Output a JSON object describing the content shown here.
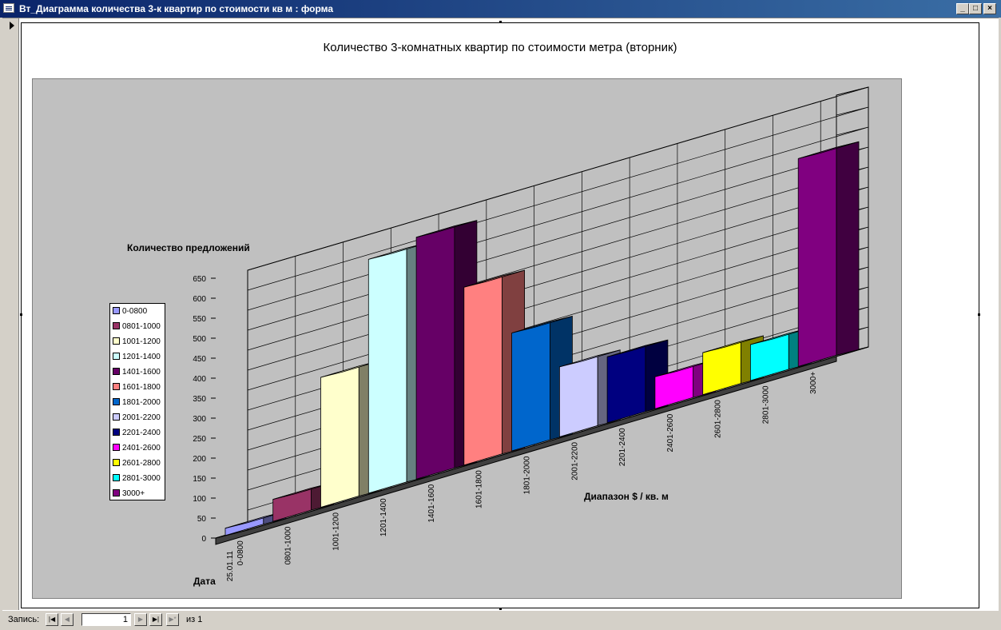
{
  "window": {
    "title": "Вт_Диаграмма количества 3-к квартир по стоимости кв м : форма",
    "minimize_label": "_",
    "maximize_label": "□",
    "close_label": "×"
  },
  "navigation": {
    "record_label": "Запись:",
    "first_label": "|◀",
    "prev_label": "◀",
    "next_label": "▶",
    "last_label": "▶|",
    "new_label": "▶*",
    "current_record": "1",
    "of_label": "из",
    "total_records": "1"
  },
  "chart_data": {
    "type": "bar",
    "title": "Количество 3-комнатных квартир по стоимости метра (вторник)",
    "ylabel": "Количество предложений",
    "xlabel": "Диапазон $ / кв. м",
    "depth_label": "Дата",
    "date_category": "25.01.11",
    "ylim": [
      0,
      650
    ],
    "yticks": [
      "0",
      "50",
      "100",
      "150",
      "200",
      "250",
      "300",
      "350",
      "400",
      "450",
      "500",
      "550",
      "600",
      "650"
    ],
    "categories": [
      "0-0800",
      "0801-1000",
      "1001-1200",
      "1201-1400",
      "1401-1600",
      "1601-1800",
      "1801-2000",
      "2001-2200",
      "2201-2400",
      "2401-2600",
      "2601-2800",
      "2801-3000",
      "3000+"
    ],
    "values": [
      18,
      55,
      325,
      585,
      605,
      445,
      295,
      175,
      165,
      80,
      105,
      90,
      520
    ],
    "colors": [
      "#9999ff",
      "#993366",
      "#ffffcc",
      "#ccffff",
      "#660066",
      "#ff8080",
      "#0066cc",
      "#ccccff",
      "#000080",
      "#ff00ff",
      "#ffff00",
      "#00ffff",
      "#800080"
    ],
    "legend_position": "left",
    "grid": true
  }
}
